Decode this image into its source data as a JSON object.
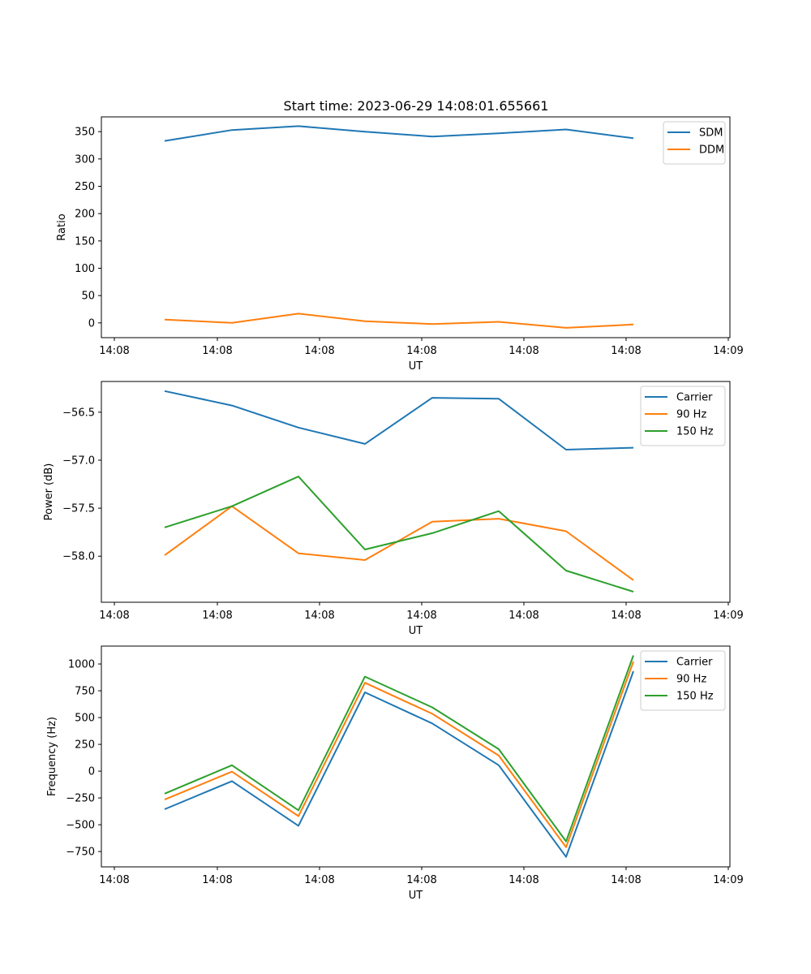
{
  "figure": {
    "title": "Start time: 2023-06-29 14:08:01.655661"
  },
  "chart_data": [
    {
      "type": "line",
      "xlabel": "UT",
      "ylabel": "Ratio",
      "x_tick_labels": [
        "14:08",
        "14:08",
        "14:08",
        "14:08",
        "14:08",
        "14:08",
        "14:09"
      ],
      "x_points": 8,
      "ylim": [
        -27,
        377
      ],
      "yticks": [
        0,
        50,
        100,
        150,
        200,
        250,
        300,
        350
      ],
      "grid": false,
      "legend": "top-right",
      "series": [
        {
          "name": "SDM",
          "color": "#1f77b4",
          "values": [
            333,
            353,
            360,
            350,
            341,
            347,
            354,
            338
          ]
        },
        {
          "name": "DDM",
          "color": "#ff7f0e",
          "values": [
            6,
            0,
            17,
            3,
            -2,
            2,
            -9,
            -3
          ]
        }
      ]
    },
    {
      "type": "line",
      "xlabel": "UT",
      "ylabel": "Power (dB)",
      "x_tick_labels": [
        "14:08",
        "14:08",
        "14:08",
        "14:08",
        "14:08",
        "14:08",
        "14:09"
      ],
      "x_points": 8,
      "ylim": [
        -58.48,
        -56.18
      ],
      "yticks": [
        -58.0,
        -57.5,
        -57.0,
        -56.5
      ],
      "ytick_labels": [
        "−58.0",
        "−57.5",
        "−57.0",
        "−56.5"
      ],
      "grid": false,
      "legend": "top-right",
      "series": [
        {
          "name": "Carrier",
          "color": "#1f77b4",
          "values": [
            -56.28,
            -56.43,
            -56.66,
            -56.83,
            -56.35,
            -56.36,
            -56.89,
            -56.87
          ]
        },
        {
          "name": "90 Hz",
          "color": "#ff7f0e",
          "values": [
            -57.99,
            -57.48,
            -57.97,
            -58.04,
            -57.64,
            -57.61,
            -57.74,
            -58.25
          ]
        },
        {
          "name": "150 Hz",
          "color": "#2ca02c",
          "values": [
            -57.7,
            -57.48,
            -57.17,
            -57.93,
            -57.76,
            -57.53,
            -58.15,
            -58.37
          ]
        }
      ]
    },
    {
      "type": "line",
      "xlabel": "UT",
      "ylabel": "Frequency (Hz)",
      "x_tick_labels": [
        "14:08",
        "14:08",
        "14:08",
        "14:08",
        "14:08",
        "14:08",
        "14:09"
      ],
      "x_points": 8,
      "ylim": [
        -893,
        1167
      ],
      "yticks": [
        -750,
        -500,
        -250,
        0,
        250,
        500,
        750,
        1000
      ],
      "ytick_labels": [
        "−750",
        "−500",
        "−250",
        "0",
        "250",
        "500",
        "750",
        "1000"
      ],
      "grid": false,
      "legend": "top-right",
      "series": [
        {
          "name": "Carrier",
          "color": "#1f77b4",
          "values": [
            -355,
            -93,
            -510,
            735,
            445,
            55,
            -800,
            932
          ]
        },
        {
          "name": "90 Hz",
          "color": "#ff7f0e",
          "values": [
            -265,
            -5,
            -420,
            825,
            535,
            145,
            -710,
            1022
          ]
        },
        {
          "name": "150 Hz",
          "color": "#2ca02c",
          "values": [
            -210,
            55,
            -365,
            882,
            595,
            205,
            -655,
            1080
          ]
        }
      ]
    }
  ]
}
